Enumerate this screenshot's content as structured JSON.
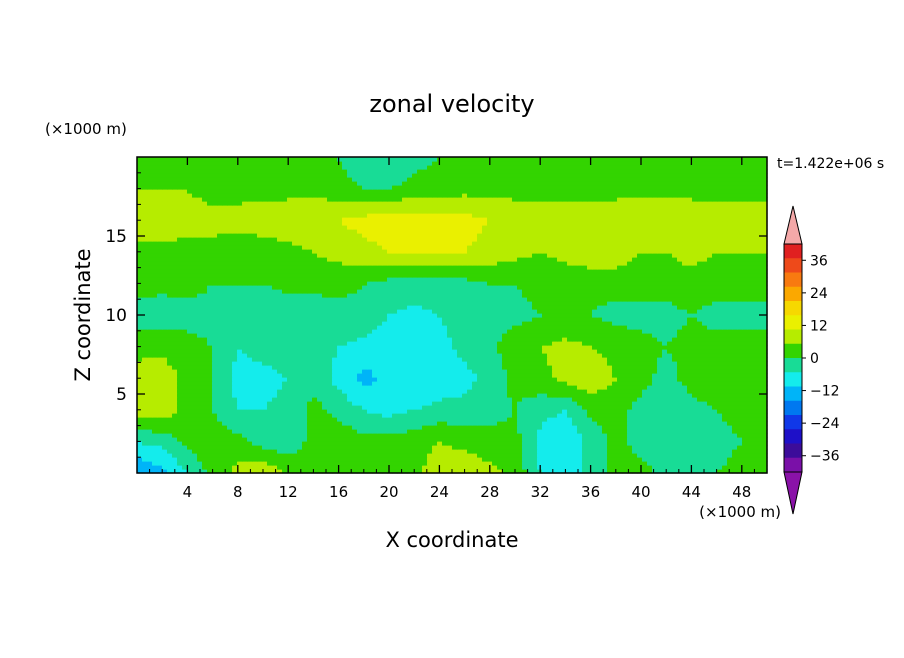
{
  "chart_data": {
    "type": "heatmap",
    "title": "zonal velocity",
    "xlabel": "X coordinate",
    "ylabel": "Z coordinate",
    "x_unit": "(×1000 m)",
    "y_unit": "(×1000 m)",
    "time_label": "t=1.422e+06 s",
    "xlim": [
      0,
      50
    ],
    "ylim": [
      0,
      20
    ],
    "x_ticks": [
      4,
      8,
      12,
      16,
      20,
      24,
      28,
      32,
      36,
      40,
      44,
      48
    ],
    "y_ticks": [
      5,
      10,
      15
    ],
    "colorbar": {
      "labels": [
        "36",
        "24",
        "12",
        "0",
        "-12",
        "-24",
        "-36"
      ],
      "label_values": [
        36,
        24,
        12,
        0,
        -12,
        -24,
        -36
      ],
      "levels_top_to_bottom": [
        42,
        36,
        30,
        24,
        18,
        12,
        6,
        0,
        -6,
        -12,
        -18,
        -24,
        -30,
        -36,
        -42
      ],
      "colors_top_to_bottom": [
        "#e02020",
        "#ee4a1a",
        "#f87a10",
        "#fba800",
        "#f6d800",
        "#eaf000",
        "#b6ec00",
        "#33d400",
        "#18dc96",
        "#14ecec",
        "#00b4f8",
        "#0078f0",
        "#1038e8",
        "#1e10c8",
        "#3c0c9a",
        "#7a10a8"
      ],
      "over_color": "#f4a8a8",
      "under_color": "#8a12a8"
    },
    "field": {
      "nx": 25,
      "nz": 11,
      "x_step": 2,
      "z_step": 2,
      "rows_from_z0": [
        [
          -18,
          -14,
          -6,
          2,
          8,
          10,
          6,
          2,
          2,
          2,
          2,
          4,
          10,
          12,
          8,
          4,
          -6,
          -10,
          -4,
          2,
          2,
          -2,
          0,
          0,
          2
        ],
        [
          -6,
          -4,
          2,
          4,
          2,
          -2,
          -4,
          2,
          4,
          2,
          2,
          4,
          6,
          4,
          2,
          2,
          -8,
          -12,
          -4,
          2,
          -2,
          -4,
          -2,
          -2,
          0
        ],
        [
          10,
          10,
          4,
          0,
          -6,
          -6,
          -4,
          2,
          -2,
          -6,
          -8,
          -6,
          -4,
          -4,
          -2,
          0,
          -4,
          -6,
          2,
          2,
          -2,
          -4,
          -2,
          0,
          2
        ],
        [
          12,
          10,
          4,
          0,
          -8,
          -8,
          -6,
          -2,
          -8,
          -14,
          -10,
          -12,
          -10,
          -8,
          -4,
          2,
          4,
          8,
          10,
          6,
          2,
          -2,
          2,
          4,
          4
        ],
        [
          2,
          4,
          2,
          0,
          -6,
          -4,
          -2,
          -2,
          -6,
          -8,
          -10,
          -8,
          -8,
          -4,
          -2,
          4,
          6,
          8,
          6,
          4,
          2,
          0,
          2,
          2,
          2
        ],
        [
          -2,
          -4,
          -2,
          -2,
          -4,
          -6,
          -4,
          -4,
          -2,
          -2,
          -6,
          -8,
          -6,
          -4,
          -2,
          -2,
          0,
          0,
          0,
          -2,
          -2,
          -2,
          0,
          -2,
          -2
        ],
        [
          2,
          2,
          2,
          0,
          0,
          0,
          2,
          2,
          2,
          0,
          -2,
          -2,
          -2,
          -2,
          0,
          0,
          2,
          2,
          2,
          2,
          2,
          2,
          4,
          2,
          2
        ],
        [
          4,
          4,
          4,
          4,
          2,
          2,
          4,
          6,
          8,
          10,
          12,
          12,
          12,
          12,
          10,
          8,
          6,
          8,
          10,
          10,
          6,
          6,
          8,
          6,
          6
        ],
        [
          10,
          10,
          8,
          8,
          8,
          10,
          10,
          12,
          12,
          14,
          16,
          16,
          16,
          14,
          12,
          10,
          10,
          10,
          10,
          10,
          12,
          12,
          10,
          10,
          10
        ],
        [
          6,
          6,
          6,
          4,
          4,
          4,
          4,
          4,
          2,
          0,
          0,
          2,
          2,
          4,
          4,
          4,
          4,
          4,
          4,
          4,
          4,
          4,
          4,
          4,
          4
        ],
        [
          2,
          2,
          2,
          2,
          2,
          2,
          2,
          2,
          0,
          -4,
          -6,
          -2,
          0,
          2,
          2,
          2,
          2,
          2,
          2,
          2,
          2,
          2,
          2,
          2,
          2
        ]
      ]
    }
  }
}
